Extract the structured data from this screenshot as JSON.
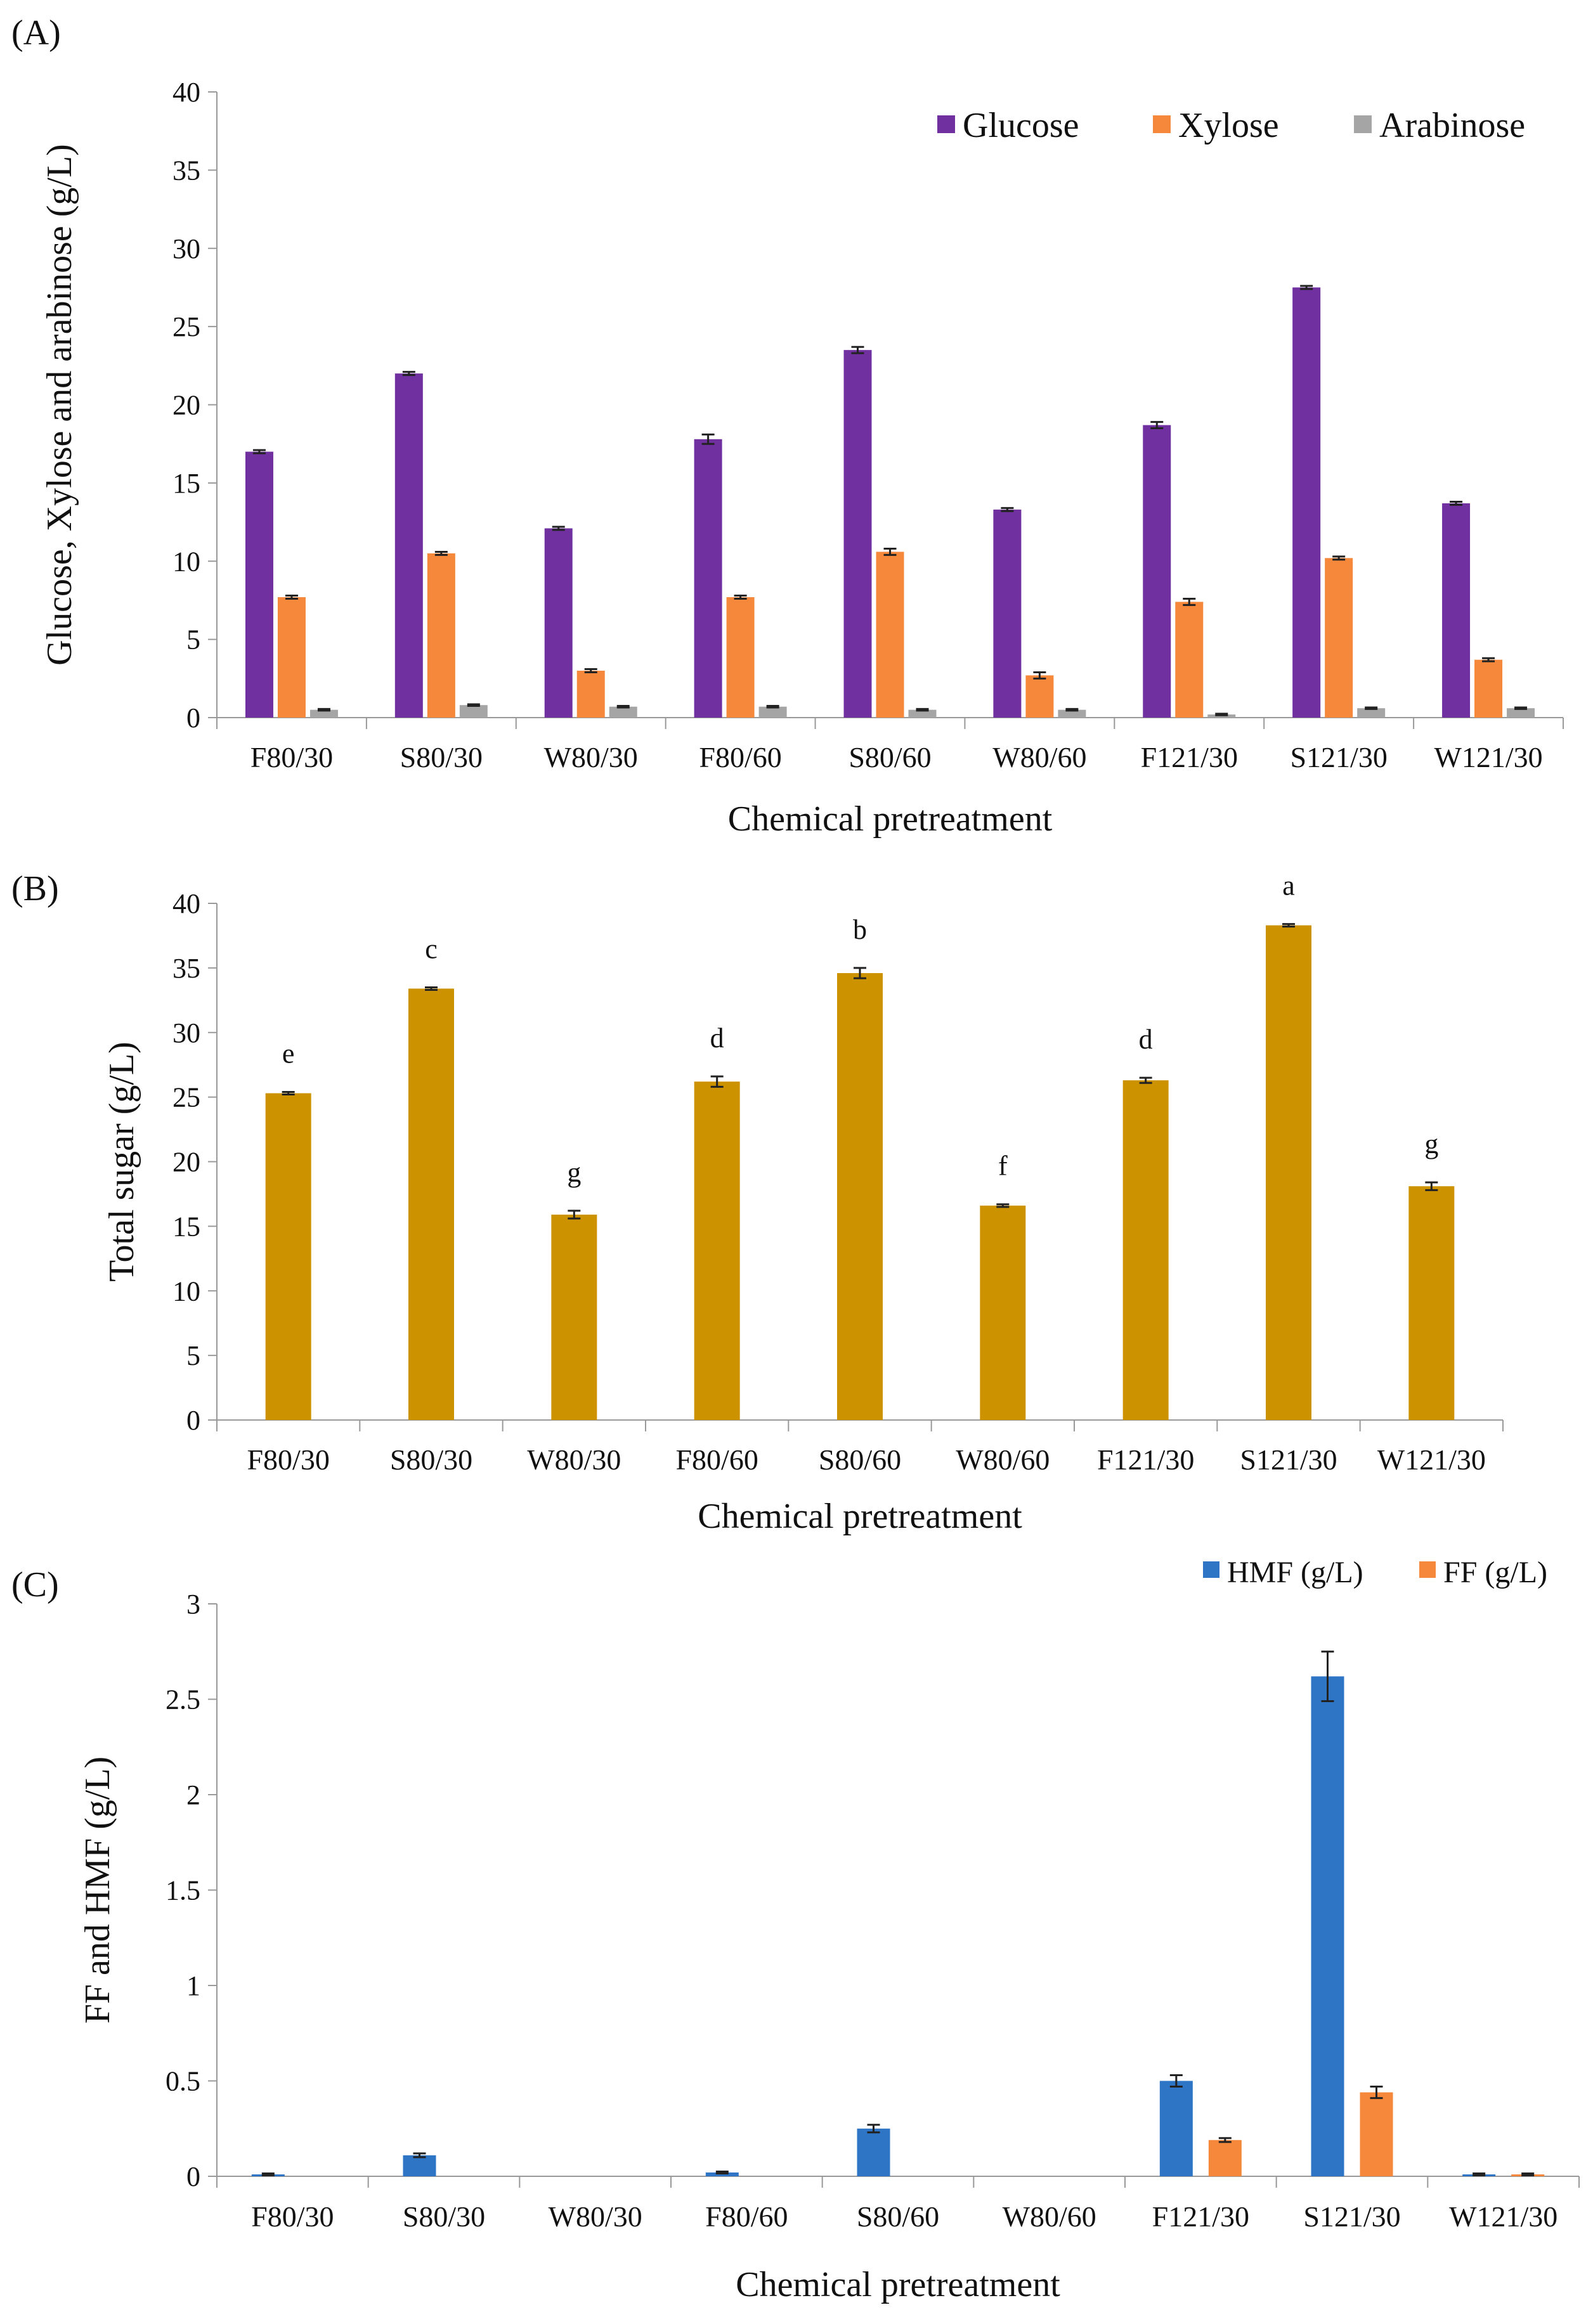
{
  "chart_data": [
    {
      "type": "bar",
      "panel": "(A)",
      "title": "",
      "xlabel": "Chemical pretreatment",
      "ylabel": "Glucose, Xylose and arabinose (g/L)",
      "ylim": [
        0,
        40
      ],
      "yticks": [
        "0",
        "5",
        "10",
        "15",
        "20",
        "25",
        "30",
        "35",
        "40"
      ],
      "categories": [
        "F80/30",
        "S80/30",
        "W80/30",
        "F80/60",
        "S80/60",
        "W80/60",
        "F121/30",
        "S121/30",
        "W121/30"
      ],
      "legend_position": "top-right",
      "series": [
        {
          "name": "Glucose",
          "color": "#7030A0",
          "values": [
            17.0,
            22.0,
            12.1,
            17.8,
            23.5,
            13.3,
            18.7,
            27.5,
            13.7
          ],
          "errors": [
            0.1,
            0.1,
            0.1,
            0.3,
            0.2,
            0.1,
            0.2,
            0.1,
            0.1
          ]
        },
        {
          "name": "Xylose",
          "color": "#F5883A",
          "values": [
            7.7,
            10.5,
            3.0,
            7.7,
            10.6,
            2.7,
            7.4,
            10.2,
            3.7
          ],
          "errors": [
            0.1,
            0.1,
            0.1,
            0.1,
            0.2,
            0.2,
            0.2,
            0.1,
            0.1
          ]
        },
        {
          "name": "Arabinose",
          "color": "#A5A5A5",
          "values": [
            0.5,
            0.8,
            0.7,
            0.7,
            0.5,
            0.5,
            0.2,
            0.6,
            0.6
          ],
          "errors": [
            0.05,
            0.05,
            0.05,
            0.05,
            0.05,
            0.05,
            0.05,
            0.05,
            0.05
          ]
        }
      ]
    },
    {
      "type": "bar",
      "panel": "(B)",
      "title": "",
      "xlabel": "Chemical pretreatment",
      "ylabel": "Total sugar (g/L)",
      "ylim": [
        0,
        40
      ],
      "yticks": [
        "0",
        "5",
        "10",
        "15",
        "20",
        "25",
        "30",
        "35",
        "40"
      ],
      "categories": [
        "F80/30",
        "S80/30",
        "W80/30",
        "F80/60",
        "S80/60",
        "W80/60",
        "F121/30",
        "S121/30",
        "W121/30"
      ],
      "series": [
        {
          "name": "Total sugar",
          "color": "#CC9200",
          "values": [
            25.3,
            33.4,
            15.9,
            26.2,
            34.6,
            16.6,
            26.3,
            38.3,
            18.1
          ],
          "errors": [
            0.1,
            0.1,
            0.3,
            0.4,
            0.4,
            0.1,
            0.2,
            0.1,
            0.3
          ]
        }
      ],
      "annotations": [
        "e",
        "c",
        "g",
        "d",
        "b",
        "f",
        "d",
        "a",
        "g"
      ]
    },
    {
      "type": "bar",
      "panel": "(C)",
      "title": "",
      "xlabel": "Chemical pretreatment",
      "ylabel": "FF and HMF (g/L)",
      "ylim": [
        0,
        3
      ],
      "yticks": [
        "0",
        "0.5",
        "1",
        "1.5",
        "2",
        "2.5",
        "3"
      ],
      "categories": [
        "F80/30",
        "S80/30",
        "W80/30",
        "F80/60",
        "S80/60",
        "W80/60",
        "F121/30",
        "S121/30",
        "W121/30"
      ],
      "legend_position": "top-right",
      "series": [
        {
          "name": "HMF (g/L)",
          "color": "#2E75C6",
          "values": [
            0.01,
            0.11,
            0.0,
            0.02,
            0.25,
            0.0,
            0.5,
            2.62,
            0.01
          ],
          "errors": [
            0.005,
            0.01,
            0.0,
            0.005,
            0.02,
            0.0,
            0.03,
            0.13,
            0.005
          ]
        },
        {
          "name": "FF (g/L)",
          "color": "#F5883A",
          "values": [
            0.0,
            0.0,
            0.0,
            0.0,
            0.0,
            0.0,
            0.19,
            0.44,
            0.01
          ],
          "errors": [
            0.0,
            0.0,
            0.0,
            0.0,
            0.0,
            0.0,
            0.01,
            0.03,
            0.005
          ]
        }
      ]
    }
  ]
}
